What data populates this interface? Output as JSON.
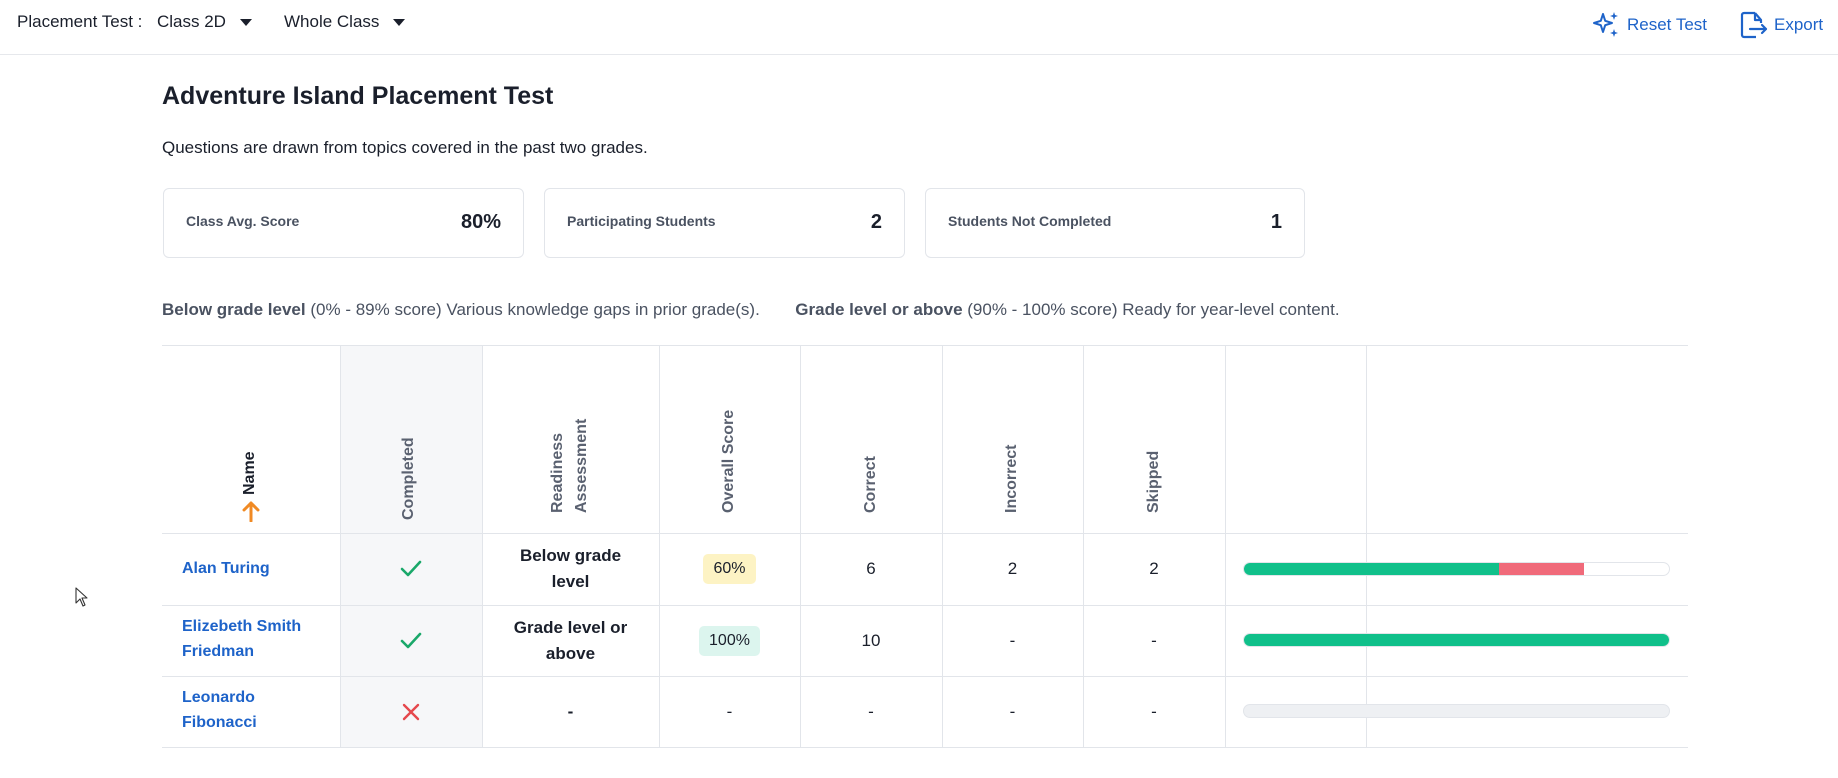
{
  "topbar": {
    "label": "Placement Test :",
    "class_value": "Class 2D",
    "group_value": "Whole Class",
    "reset_label": "Reset Test",
    "export_label": "Export"
  },
  "page": {
    "title": "Adventure Island Placement Test",
    "subtitle": "Questions are drawn from topics covered in the past two grades."
  },
  "stats": [
    {
      "label": "Class Avg. Score",
      "value": "80%"
    },
    {
      "label": "Participating Students",
      "value": "2"
    },
    {
      "label": "Students Not Completed",
      "value": "1"
    }
  ],
  "legend": {
    "below_title": "Below grade level",
    "below_text": "(0% - 89% score) Various knowledge gaps in prior grade(s).",
    "above_title": "Grade level or above",
    "above_text": "(90% - 100% score) Ready for year-level content."
  },
  "table": {
    "headers": {
      "name": "Name",
      "completed": "Completed",
      "readiness_1": "Readiness",
      "readiness_2": "Assessment",
      "score": "Overall Score",
      "correct": "Correct",
      "incorrect": "Incorrect",
      "skipped": "Skipped"
    },
    "rows": [
      {
        "name": "Alan Turing",
        "completed": true,
        "readiness": "Below grade level",
        "score": "60%",
        "correct": "6",
        "incorrect": "2",
        "skipped": "2",
        "progress": {
          "correct": 0.6,
          "incorrect": 0.2
        }
      },
      {
        "name": "Elizebeth Smith Friedman",
        "completed": true,
        "readiness": "Grade level or above",
        "score": "100%",
        "correct": "10",
        "incorrect": "-",
        "skipped": "-",
        "progress": {
          "correct": 1.0,
          "incorrect": 0
        }
      },
      {
        "name": "Leonardo Fibonacci",
        "completed": false,
        "readiness": "-",
        "score": "-",
        "correct": "-",
        "incorrect": "-",
        "skipped": "-",
        "progress": {
          "correct": 0,
          "incorrect": 0
        }
      }
    ]
  },
  "colors": {
    "link": "#1e63c9",
    "correct_bar": "#10c08a",
    "incorrect_bar": "#f06a7a",
    "check": "#1aa86a",
    "cross": "#e5484d",
    "sort_arrow": "#f08a24"
  },
  "icons": {
    "sort": "arrow-up-icon",
    "reset": "sparkle-icon",
    "export": "export-icon",
    "completed_yes": "check-icon",
    "completed_no": "x-icon"
  }
}
